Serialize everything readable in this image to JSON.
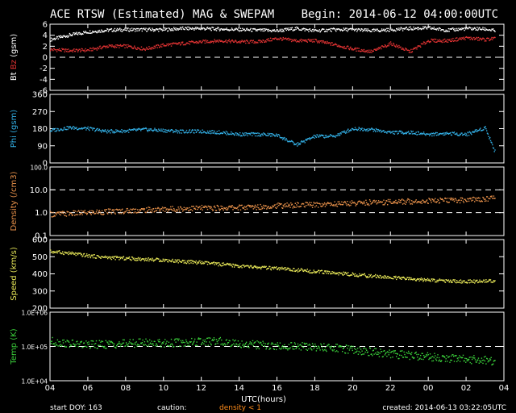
{
  "header": {
    "title": "ACE RTSW (Estimated) MAG & SWEPAM",
    "begin": "Begin: 2014-06-12 04:00:00UTC"
  },
  "footer": {
    "start_doy": "start DOY: 163",
    "caution": "caution:",
    "density_note": "density < 1",
    "created": "created: 2014-06-13 03:22:05UTC"
  },
  "colors": {
    "background": "#000000",
    "axes": "#ffffff",
    "bt": "#ffffff",
    "bz": "#e03232",
    "phi": "#33b0e6",
    "density": "#e8914a",
    "speed": "#e8e858",
    "temp": "#3bd23b",
    "caution": "#ff8c1a"
  },
  "chart_data": [
    {
      "type": "line",
      "panel": "mag",
      "ylabel_parts": [
        "Bt",
        "Bz",
        "(gsm)"
      ],
      "yticks": [
        "6",
        "4",
        "2",
        "0",
        "-2",
        "-4",
        "-6"
      ],
      "ylim": [
        -6,
        6
      ],
      "grid": false,
      "ref_lines": [
        0
      ],
      "x": [
        4,
        5,
        6,
        7,
        8,
        9,
        10,
        11,
        12,
        13,
        14,
        15,
        16,
        17,
        18,
        19,
        20,
        21,
        22,
        23,
        24,
        25,
        26,
        27,
        27.5
      ],
      "series": [
        {
          "name": "Bt",
          "values": [
            3.2,
            4.0,
            4.6,
            4.9,
            5.0,
            5.0,
            5.0,
            5.2,
            5.2,
            5.1,
            5.0,
            4.9,
            4.8,
            5.2,
            4.8,
            5.0,
            5.0,
            4.8,
            5.0,
            5.2,
            5.3,
            4.9,
            5.2,
            5.1,
            4.8
          ]
        },
        {
          "name": "Bz",
          "values": [
            1.4,
            1.2,
            1.3,
            2.0,
            2.0,
            1.5,
            2.2,
            2.5,
            2.8,
            3.0,
            2.8,
            2.8,
            3.4,
            3.0,
            3.0,
            2.3,
            1.5,
            1.0,
            2.5,
            1.0,
            3.0,
            3.0,
            3.5,
            3.2,
            3.4
          ]
        }
      ]
    },
    {
      "type": "scatter",
      "panel": "phi",
      "ylabel": "Phi (gsm)",
      "yticks": [
        "360",
        "270",
        "180",
        "90",
        "0"
      ],
      "ylim": [
        0,
        360
      ],
      "grid": false,
      "ref_lines": [],
      "x": [
        4,
        5,
        6,
        7,
        8,
        9,
        10,
        11,
        12,
        13,
        14,
        15,
        16,
        17,
        18,
        19,
        20,
        21,
        22,
        23,
        24,
        25,
        26,
        27,
        27.5
      ],
      "series": [
        {
          "name": "Phi",
          "values": [
            170,
            185,
            180,
            165,
            168,
            175,
            170,
            165,
            165,
            160,
            150,
            150,
            145,
            95,
            140,
            140,
            180,
            175,
            160,
            160,
            150,
            155,
            150,
            185,
            60
          ]
        }
      ]
    },
    {
      "type": "scatter",
      "panel": "density",
      "ylabel": "Density (/cm3)",
      "yticks": [
        "100.0",
        "10.0",
        "1.0",
        "0.1"
      ],
      "ylim": [
        0.1,
        100
      ],
      "ylog": true,
      "grid": false,
      "ref_lines": [
        10,
        1
      ],
      "x": [
        4,
        5,
        6,
        7,
        8,
        9,
        10,
        11,
        12,
        13,
        14,
        15,
        16,
        17,
        18,
        19,
        20,
        21,
        22,
        23,
        24,
        25,
        26,
        27,
        27.5
      ],
      "series": [
        {
          "name": "Density",
          "values": [
            0.85,
            0.9,
            1.0,
            1.1,
            1.2,
            1.3,
            1.4,
            1.5,
            1.6,
            1.6,
            1.7,
            1.8,
            2.0,
            2.1,
            2.2,
            2.4,
            2.6,
            2.8,
            3.0,
            3.1,
            3.3,
            3.4,
            3.6,
            4.0,
            4.6
          ]
        }
      ]
    },
    {
      "type": "scatter",
      "panel": "speed",
      "ylabel": "Speed (km/s)",
      "yticks": [
        "600",
        "500",
        "400",
        "300",
        "200"
      ],
      "ylim": [
        200,
        600
      ],
      "grid": false,
      "ref_lines": [],
      "x": [
        4,
        5,
        6,
        7,
        8,
        9,
        10,
        11,
        12,
        13,
        14,
        15,
        16,
        17,
        18,
        19,
        20,
        21,
        22,
        23,
        24,
        25,
        26,
        27,
        27.5
      ],
      "series": [
        {
          "name": "Speed",
          "values": [
            530,
            520,
            505,
            495,
            490,
            485,
            480,
            472,
            465,
            455,
            445,
            437,
            430,
            422,
            413,
            405,
            396,
            387,
            378,
            370,
            363,
            358,
            354,
            358,
            360
          ]
        }
      ]
    },
    {
      "type": "scatter",
      "panel": "temp",
      "ylabel": "Temp (K)",
      "yticks": [
        "1.0E+06",
        "1.0E+05",
        "1.0E+04"
      ],
      "ylim": [
        10000,
        1000000
      ],
      "ylog": true,
      "grid": false,
      "ref_lines": [
        100000
      ],
      "x": [
        4,
        5,
        6,
        7,
        8,
        9,
        10,
        11,
        12,
        13,
        14,
        15,
        16,
        17,
        18,
        19,
        20,
        21,
        22,
        23,
        24,
        25,
        26,
        27,
        27.5
      ],
      "series": [
        {
          "name": "Temp",
          "values": [
            140000,
            120000,
            110000,
            115000,
            120000,
            130000,
            125000,
            130000,
            135000,
            140000,
            120000,
            110000,
            100000,
            100000,
            95000,
            90000,
            80000,
            70000,
            60000,
            55000,
            50000,
            45000,
            42000,
            40000,
            35000
          ]
        }
      ],
      "xlabel": "UTC(hours)",
      "xticks": [
        "04",
        "06",
        "08",
        "10",
        "12",
        "14",
        "16",
        "18",
        "20",
        "22",
        "00",
        "02",
        "04"
      ],
      "xlim": [
        4,
        28
      ]
    }
  ]
}
